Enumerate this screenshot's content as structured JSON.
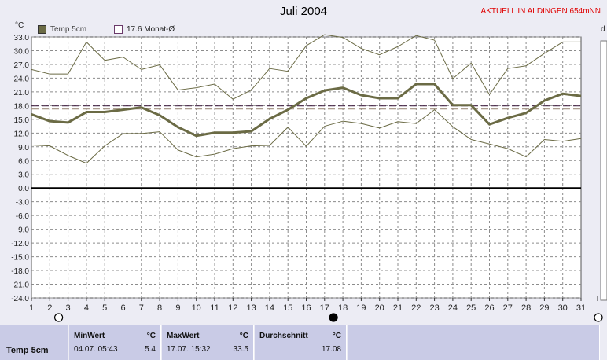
{
  "header": {
    "title": "Juli 2004",
    "station": "AKTUELL IN ALDINGEN 654mNN",
    "unit": "°C",
    "unit_right": "d"
  },
  "legend": {
    "series_label": "Temp 5cm",
    "mean_label": "17.6 Monat-Ø"
  },
  "colors": {
    "main_line": "#6b6b45",
    "minmax_line": "#6b6b45",
    "mean_line_a": "#4a2a4a",
    "mean_line_b": "#a09080",
    "zero_line": "#000000",
    "grid": "#8c8c8c",
    "panel": "#c9cbe6"
  },
  "chart_data": {
    "type": "line",
    "title": "Juli 2004",
    "xlabel": "",
    "ylabel": "°C",
    "ylim": [
      -24,
      33
    ],
    "xlim": [
      1,
      31
    ],
    "yticks": [
      "33.0",
      "30.0",
      "27.0",
      "24.0",
      "21.0",
      "18.0",
      "15.0",
      "12.0",
      "9.0",
      "6.0",
      "3.0",
      "0.0",
      "-3.0",
      "-6.0",
      "-9.0",
      "-12.0",
      "-15.0",
      "-18.0",
      "-21.0",
      "-24.0"
    ],
    "xticks": [
      "1",
      "2",
      "3",
      "4",
      "5",
      "6",
      "7",
      "8",
      "9",
      "10",
      "11",
      "12",
      "13",
      "14",
      "15",
      "16",
      "17",
      "18",
      "19",
      "20",
      "21",
      "22",
      "23",
      "24",
      "25",
      "26",
      "27",
      "28",
      "29",
      "30",
      "31"
    ],
    "x": [
      1,
      2,
      3,
      4,
      5,
      6,
      7,
      8,
      9,
      10,
      11,
      12,
      13,
      14,
      15,
      16,
      17,
      18,
      19,
      20,
      21,
      22,
      23,
      24,
      25,
      26,
      27,
      28,
      29,
      30,
      31
    ],
    "series": [
      {
        "name": "Temp 5cm",
        "values": [
          16.1,
          14.6,
          14.3,
          16.6,
          16.6,
          17.1,
          17.6,
          15.9,
          13.3,
          11.4,
          12.1,
          12.1,
          12.4,
          15.1,
          17.1,
          19.6,
          21.3,
          21.9,
          20.3,
          19.6,
          19.6,
          22.7,
          22.7,
          18.1,
          18.1,
          13.9,
          15.3,
          16.4,
          19.1,
          20.6,
          20.1
        ]
      },
      {
        "name": "",
        "values": [
          25.9,
          24.9,
          24.9,
          31.9,
          27.9,
          28.6,
          25.9,
          26.9,
          21.4,
          21.9,
          22.7,
          19.4,
          21.4,
          26.1,
          25.5,
          31.1,
          33.5,
          32.9,
          30.5,
          29.1,
          30.9,
          33.3,
          32.3,
          23.9,
          27.3,
          20.4,
          26.1,
          26.7,
          29.4,
          31.9,
          31.9
        ]
      },
      {
        "name": "",
        "values": [
          9.4,
          9.2,
          7.1,
          5.4,
          9.2,
          11.9,
          11.9,
          12.3,
          8.3,
          6.8,
          7.4,
          8.6,
          9.2,
          9.3,
          13.3,
          9.1,
          13.5,
          14.6,
          14.1,
          13.1,
          14.5,
          14.1,
          17.1,
          13.4,
          10.6,
          9.6,
          8.6,
          6.8,
          10.6,
          10.2,
          10.8
        ]
      }
    ],
    "monthly_mean": 17.6,
    "grid": true,
    "legend": "top-left"
  },
  "moon": {
    "first_quarter": "3",
    "full_moon": "18"
  },
  "stats": {
    "row_label": "Temp 5cm",
    "min_header": "MinWert",
    "min_unit": "°C",
    "min_date": "04.07.  05:43",
    "min_value": "5.4",
    "max_header": "MaxWert",
    "max_unit": "°C",
    "max_date": "17.07.  15:32",
    "max_value": "33.5",
    "avg_header": "Durchschnitt",
    "avg_unit": "°C",
    "avg_value": "17.08"
  }
}
